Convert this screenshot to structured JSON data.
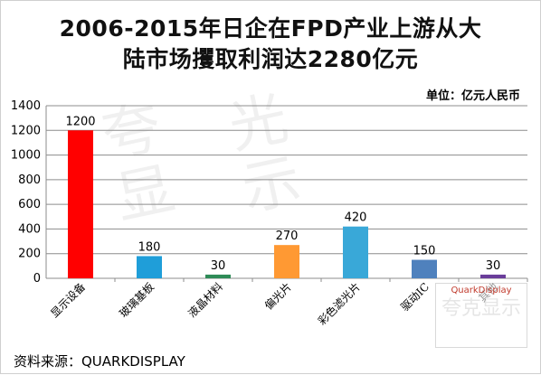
{
  "header": {
    "title_line1": "2006-2015年日企在FPD产业上游从大",
    "title_line2": "陆市场攫取利润达2280亿元",
    "unit": "单位：亿元人民币"
  },
  "footer": {
    "source": "资料来源：QUARKDISPLAY"
  },
  "watermark": {
    "box_title": "QuarkDisplay",
    "mark_text": "夸克显示"
  },
  "chart_data": {
    "type": "bar",
    "categories": [
      "显示设备",
      "玻璃基板",
      "液晶材料",
      "偏光片",
      "彩色滤光片",
      "驱动IC",
      "其他"
    ],
    "values": [
      1200,
      180,
      30,
      270,
      420,
      150,
      30
    ],
    "colors": [
      "#ff0000",
      "#1f9ed9",
      "#2e8b57",
      "#ff9933",
      "#39a8d8",
      "#4f81bd",
      "#6a3d9a"
    ],
    "ylim": [
      0,
      1400
    ],
    "yticks": [
      0,
      200,
      400,
      600,
      800,
      1000,
      1200,
      1400
    ],
    "grid": true,
    "show_data_labels": true
  }
}
